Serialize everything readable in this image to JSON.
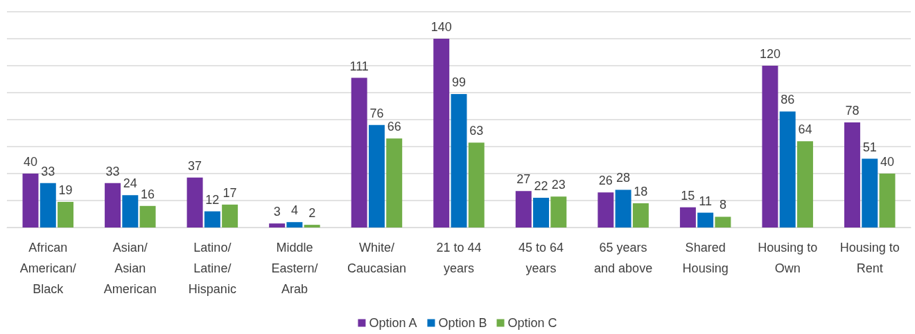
{
  "chart_data": {
    "type": "bar",
    "categories": [
      "African\nAmerican/\nBlack",
      "Asian/\nAsian\nAmerican",
      "Latino/\nLatine/\nHispanic",
      "Middle\nEastern/\nArab",
      "White/\nCaucasian",
      "21 to 44\nyears",
      "45 to 64\nyears",
      "65 years\nand above",
      "Shared\nHousing",
      "Housing to\nOwn",
      "Housing to\nRent"
    ],
    "series": [
      {
        "name": "Option A",
        "color": "#7030a0",
        "values": [
          40,
          33,
          37,
          3,
          111,
          140,
          27,
          26,
          15,
          120,
          78
        ]
      },
      {
        "name": "Option B",
        "color": "#0070c0",
        "values": [
          33,
          24,
          12,
          4,
          76,
          99,
          22,
          28,
          11,
          86,
          51
        ]
      },
      {
        "name": "Option C",
        "color": "#70ad47",
        "values": [
          19,
          16,
          17,
          2,
          66,
          63,
          23,
          18,
          8,
          64,
          40
        ]
      }
    ],
    "ylim": [
      0,
      160
    ],
    "yticks": [
      {
        "value": 0,
        "label": null
      },
      {
        "value": 20,
        "label": null
      },
      {
        "value": 40,
        "label": null
      },
      {
        "value": 60,
        "label": null
      },
      {
        "value": 80,
        "label": null
      },
      {
        "value": 100,
        "label": null
      },
      {
        "value": 120,
        "label": null
      },
      {
        "value": 140,
        "label": null
      },
      {
        "value": 160,
        "label": null
      }
    ],
    "grid": "y",
    "legend": "bottom",
    "data_labels": true,
    "tick_labels": "x"
  }
}
